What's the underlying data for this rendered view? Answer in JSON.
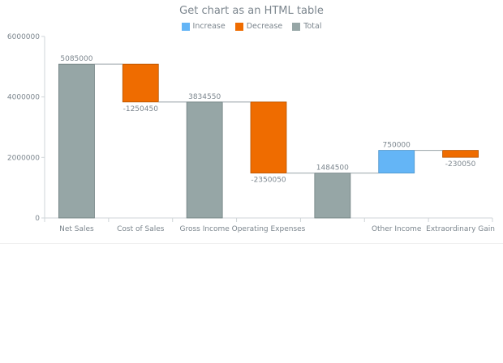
{
  "chart_data": {
    "type": "waterfall",
    "title": "Get chart as an HTML table",
    "ylim": [
      0,
      6000000
    ],
    "yticks": [
      0,
      2000000,
      4000000,
      6000000
    ],
    "grid": false,
    "legend_position": "top-center",
    "legend": [
      {
        "name": "Increase",
        "color": "#64b5f6"
      },
      {
        "name": "Decrease",
        "color": "#ef6c00"
      },
      {
        "name": "Total",
        "color": "#96a6a6"
      }
    ],
    "categories": [
      "Net Sales",
      "Cost of Sales",
      "Gross Income",
      "Operating Expenses",
      "",
      "Other Income",
      "Extraordinary Gain"
    ],
    "bars": [
      {
        "category": "Net Sales",
        "kind": "total",
        "value": 5085000,
        "label": "5085000"
      },
      {
        "category": "Cost of Sales",
        "kind": "decrease",
        "value": -1250450,
        "label": "-1250450"
      },
      {
        "category": "Gross Income",
        "kind": "total",
        "value": 3834550,
        "label": "3834550"
      },
      {
        "category": "Operating Expenses",
        "kind": "decrease",
        "value": -2350050,
        "label": "-2350050"
      },
      {
        "category": "",
        "kind": "total",
        "value": 1484500,
        "label": "1484500"
      },
      {
        "category": "Other Income",
        "kind": "increase",
        "value": 750000,
        "label": "750000"
      },
      {
        "category": "Extraordinary Gain",
        "kind": "decrease",
        "value": -230050,
        "label": "-230050"
      }
    ]
  }
}
